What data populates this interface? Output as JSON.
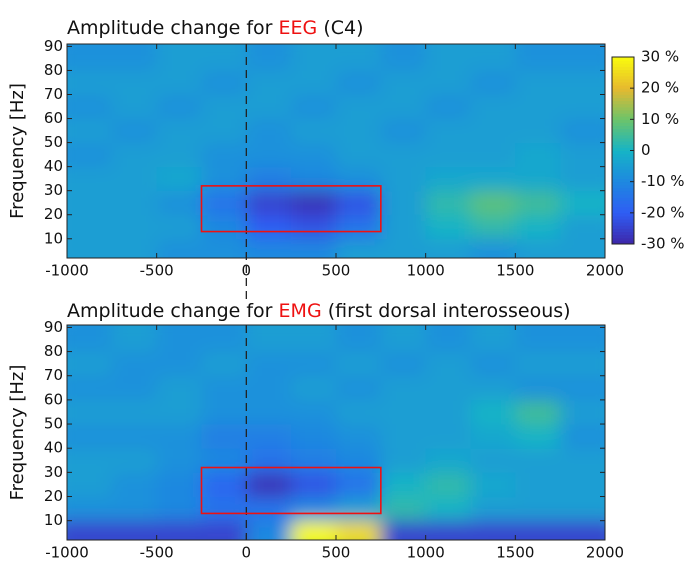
{
  "chart_data": [
    {
      "type": "heatmap",
      "title": [
        "Amplitude change for ",
        "EEG",
        " (C4)"
      ],
      "title_highlight_color": "#ee1111",
      "ylabel": "Frequency [Hz]",
      "x_edges": [
        -1000,
        -750,
        -500,
        -250,
        0,
        250,
        500,
        750,
        1000,
        1250,
        1500,
        1750,
        2000
      ],
      "y_edges": [
        2,
        10,
        20,
        30,
        40,
        50,
        60,
        70,
        80,
        91
      ],
      "z": [
        [
          -5,
          -5,
          -8,
          -8,
          -10,
          -10,
          -5,
          -5,
          -5,
          -8,
          -5,
          -5
        ],
        [
          -5,
          -5,
          -5,
          -10,
          -20,
          -22,
          -15,
          -5,
          0,
          3,
          0,
          -5
        ],
        [
          -5,
          -5,
          -8,
          -15,
          -25,
          -28,
          -22,
          -5,
          3,
          8,
          5,
          0
        ],
        [
          -5,
          -5,
          -3,
          -8,
          -12,
          -10,
          -8,
          -5,
          -3,
          -3,
          -3,
          -5
        ],
        [
          -8,
          -5,
          -5,
          -8,
          -8,
          -8,
          -5,
          -5,
          -5,
          -5,
          -3,
          -5
        ],
        [
          -5,
          -8,
          -5,
          -5,
          -8,
          -5,
          -5,
          -8,
          -5,
          -5,
          -5,
          -8
        ],
        [
          -8,
          -5,
          -8,
          -5,
          -5,
          -8,
          -5,
          -5,
          -8,
          -5,
          -5,
          -5
        ],
        [
          -5,
          -5,
          -5,
          -8,
          -5,
          -5,
          -8,
          -5,
          -5,
          -8,
          -5,
          -5
        ],
        [
          -8,
          -8,
          -5,
          -5,
          -8,
          -5,
          -5,
          -8,
          -5,
          -5,
          -8,
          -8
        ]
      ],
      "xlim": [
        -1000,
        2000
      ],
      "ylim": [
        2,
        91
      ],
      "xticks": [
        -1000,
        -500,
        0,
        500,
        1000,
        1500,
        2000
      ],
      "yticks": [
        10,
        20,
        30,
        40,
        50,
        60,
        70,
        80,
        90
      ],
      "vline": 0,
      "box": {
        "x": [
          -250,
          750
        ],
        "y": [
          13,
          32
        ],
        "color": "#ee1111"
      },
      "zlim": [
        -30,
        30
      ],
      "colormap": [
        "#3e26a8",
        "#2f5df4",
        "#1e88e0",
        "#16b4c6",
        "#6cc46a",
        "#e6b92f",
        "#f9fb0e"
      ],
      "colorbar_ticks": [
        {
          "value": 30,
          "label": "30 %"
        },
        {
          "value": 20,
          "label": "20 %"
        },
        {
          "value": 10,
          "label": "10 %"
        },
        0,
        {
          "value": -10,
          "label": "-10 %"
        },
        {
          "value": -20,
          "label": "-20 %"
        },
        {
          "value": -30,
          "label": "-30 %"
        }
      ]
    },
    {
      "type": "heatmap",
      "title": [
        "Amplitude change for ",
        "EMG",
        " (first dorsal interosseous)"
      ],
      "title_highlight_color": "#ee1111",
      "ylabel": "Frequency [Hz]",
      "x_edges": [
        -1000,
        -750,
        -500,
        -250,
        0,
        250,
        500,
        750,
        1000,
        1250,
        1500,
        1750,
        2000
      ],
      "y_edges": [
        2,
        10,
        20,
        30,
        40,
        50,
        60,
        70,
        80,
        91
      ],
      "z": [
        [
          -25,
          -25,
          -25,
          -25,
          -10,
          30,
          25,
          -25,
          -25,
          -25,
          -25,
          -25
        ],
        [
          -8,
          -8,
          -10,
          -15,
          -15,
          -10,
          -5,
          3,
          0,
          -5,
          -5,
          -5
        ],
        [
          -5,
          -8,
          -10,
          -18,
          -28,
          -22,
          -15,
          0,
          3,
          -3,
          -5,
          -5
        ],
        [
          -5,
          -5,
          -8,
          -10,
          -15,
          -12,
          -10,
          -5,
          -3,
          -5,
          -5,
          -5
        ],
        [
          -8,
          -8,
          -8,
          -12,
          -12,
          -10,
          -8,
          -5,
          -5,
          -3,
          0,
          -8
        ],
        [
          -5,
          -5,
          -5,
          -8,
          -8,
          -8,
          -5,
          -5,
          -5,
          0,
          5,
          -5
        ],
        [
          -8,
          -8,
          -5,
          -8,
          -8,
          -5,
          -8,
          -5,
          -5,
          -5,
          -8,
          -8
        ],
        [
          -5,
          -8,
          -8,
          -5,
          -8,
          -8,
          -5,
          -8,
          -5,
          -8,
          -5,
          -5
        ],
        [
          -8,
          -5,
          -8,
          -8,
          -5,
          -5,
          -8,
          -5,
          -8,
          -5,
          -8,
          -8
        ]
      ],
      "xlim": [
        -1000,
        2000
      ],
      "ylim": [
        2,
        91
      ],
      "xticks": [
        -1000,
        -500,
        0,
        500,
        1000,
        1500,
        2000
      ],
      "yticks": [
        10,
        20,
        30,
        40,
        50,
        60,
        70,
        80,
        90
      ],
      "vline": 0,
      "box": {
        "x": [
          -250,
          750
        ],
        "y": [
          13,
          32
        ],
        "color": "#ee1111"
      },
      "zlim": [
        -30,
        30
      ],
      "colormap": [
        "#3e26a8",
        "#2f5df4",
        "#1e88e0",
        "#16b4c6",
        "#6cc46a",
        "#e6b92f",
        "#f9fb0e"
      ]
    }
  ]
}
